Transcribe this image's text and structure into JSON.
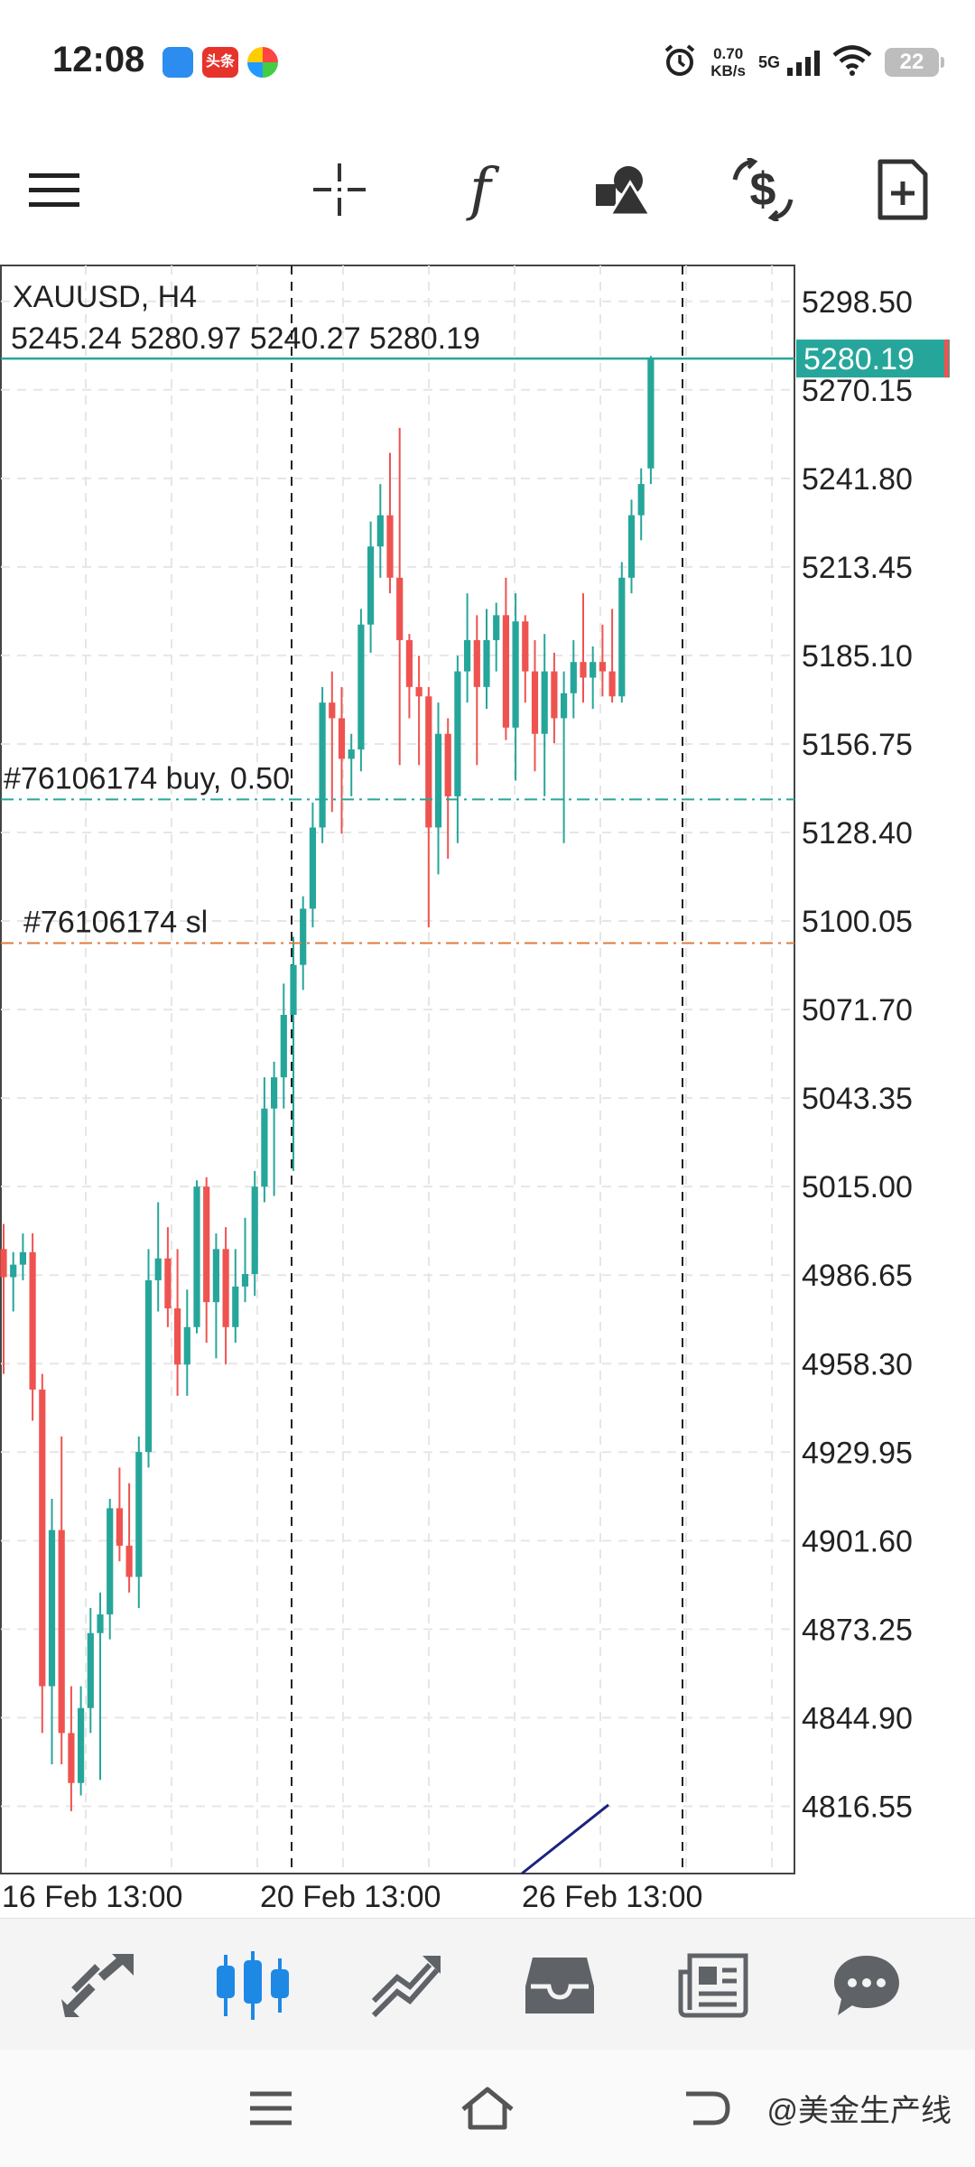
{
  "status_bar": {
    "time": "12:08",
    "network_speed_value": "0.70",
    "network_speed_unit": "KB/s",
    "network_type": "5G",
    "battery": "22",
    "app_badge_2": "头条",
    "icons": [
      "app-blue-icon",
      "toutiao-icon",
      "colorful-app-icon",
      "alarm-icon",
      "signal-icon",
      "wifi-icon",
      "battery-icon"
    ]
  },
  "toolbar": {
    "items": [
      "menu-icon",
      "crosshair-icon",
      "indicators-icon",
      "objects-icon",
      "trade-icon",
      "new-order-icon"
    ],
    "indicators_glyph": "f"
  },
  "chart": {
    "symbol": "XAUUSD, H4",
    "ohlc": "5245.24 5280.97 5240.27 5280.19",
    "current_price_label": "5280.19",
    "buy_line_label": "#76106174 buy, 0.50",
    "sl_line_label": "#76106174 sl",
    "colors": {
      "bull": "#26a69a",
      "bear": "#ef5350",
      "price_line": "#26a69a",
      "buy_line": "#26a69a",
      "sl_line": "#e07b39",
      "indicator": "#1a237e"
    }
  },
  "chart_data": {
    "type": "candlestick",
    "symbol": "XAUUSD",
    "timeframe": "H4",
    "ylim": [
      4795,
      5310
    ],
    "y_ticks": [
      "5298.50",
      "5270.15",
      "5241.80",
      "5213.45",
      "5185.10",
      "5156.75",
      "5128.40",
      "5100.05",
      "5071.70",
      "5043.35",
      "5015.00",
      "4986.65",
      "4958.30",
      "4929.95",
      "4901.60",
      "4873.25",
      "4844.90",
      "4816.55"
    ],
    "x_ticks": [
      "16 Feb 13:00",
      "20 Feb 13:00",
      "26 Feb 13:00"
    ],
    "grid": true,
    "candles": [
      [
        4995,
        5003,
        4955,
        4986
      ],
      [
        4986,
        4994,
        4975,
        4990
      ],
      [
        4990,
        5000,
        4985,
        4994
      ],
      [
        4994,
        5000,
        4940,
        4950
      ],
      [
        4950,
        4955,
        4840,
        4855
      ],
      [
        4855,
        4915,
        4830,
        4905
      ],
      [
        4905,
        4935,
        4830,
        4840
      ],
      [
        4840,
        4855,
        4815,
        4824
      ],
      [
        4824,
        4855,
        4820,
        4848
      ],
      [
        4848,
        4880,
        4840,
        4872
      ],
      [
        4872,
        4885,
        4825,
        4878
      ],
      [
        4878,
        4915,
        4870,
        4912
      ],
      [
        4912,
        4925,
        4895,
        4900
      ],
      [
        4900,
        4920,
        4885,
        4890
      ],
      [
        4890,
        4935,
        4880,
        4930
      ],
      [
        4930,
        4995,
        4925,
        4985
      ],
      [
        4985,
        5010,
        4975,
        4992
      ],
      [
        4992,
        5002,
        4970,
        4976
      ],
      [
        4976,
        4995,
        4948,
        4958
      ],
      [
        4958,
        4982,
        4948,
        4970
      ],
      [
        4970,
        5017,
        4968,
        5015
      ],
      [
        5015,
        5018,
        4965,
        4978
      ],
      [
        4978,
        5000,
        4960,
        4995
      ],
      [
        4995,
        5002,
        4958,
        4970
      ],
      [
        4970,
        4995,
        4965,
        4983
      ],
      [
        4983,
        5005,
        4978,
        4987
      ],
      [
        4987,
        5020,
        4980,
        5015
      ],
      [
        5015,
        5050,
        5010,
        5040
      ],
      [
        5040,
        5055,
        5012,
        5050
      ],
      [
        5050,
        5080,
        5040,
        5070
      ],
      [
        5070,
        5095,
        5020,
        5086
      ],
      [
        5086,
        5108,
        5078,
        5104
      ],
      [
        5104,
        5138,
        5098,
        5130
      ],
      [
        5130,
        5175,
        5125,
        5170
      ],
      [
        5170,
        5180,
        5135,
        5165
      ],
      [
        5165,
        5175,
        5128,
        5152
      ],
      [
        5152,
        5160,
        5140,
        5155
      ],
      [
        5155,
        5200,
        5148,
        5195
      ],
      [
        5195,
        5228,
        5186,
        5220
      ],
      [
        5220,
        5240,
        5210,
        5230
      ],
      [
        5230,
        5250,
        5205,
        5210
      ],
      [
        5210,
        5258,
        5150,
        5190
      ],
      [
        5190,
        5192,
        5165,
        5175
      ],
      [
        5175,
        5185,
        5150,
        5172
      ],
      [
        5172,
        5175,
        5098,
        5130
      ],
      [
        5130,
        5170,
        5115,
        5160
      ],
      [
        5160,
        5165,
        5120,
        5140
      ],
      [
        5140,
        5185,
        5125,
        5180
      ],
      [
        5180,
        5205,
        5170,
        5190
      ],
      [
        5190,
        5198,
        5150,
        5175
      ],
      [
        5175,
        5200,
        5168,
        5190
      ],
      [
        5190,
        5202,
        5180,
        5198
      ],
      [
        5198,
        5210,
        5158,
        5162
      ],
      [
        5162,
        5205,
        5145,
        5196
      ],
      [
        5196,
        5198,
        5170,
        5180
      ],
      [
        5180,
        5190,
        5148,
        5160
      ],
      [
        5160,
        5192,
        5140,
        5180
      ],
      [
        5180,
        5186,
        5157,
        5165
      ],
      [
        5165,
        5180,
        5125,
        5173
      ],
      [
        5173,
        5190,
        5165,
        5183
      ],
      [
        5183,
        5205,
        5170,
        5178
      ],
      [
        5178,
        5188,
        5168,
        5183
      ],
      [
        5183,
        5195,
        5172,
        5180
      ],
      [
        5180,
        5200,
        5170,
        5172
      ],
      [
        5172,
        5215,
        5170,
        5210
      ],
      [
        5210,
        5235,
        5205,
        5230
      ],
      [
        5230,
        5245,
        5222,
        5240
      ],
      [
        5245,
        5281,
        5240,
        5280
      ]
    ],
    "current_price": 5280.19,
    "horizontal_lines": [
      {
        "label": "#76106174 buy, 0.50",
        "price": 5139
      },
      {
        "label": "#76106174 sl",
        "price": 5093
      }
    ],
    "indicator_segment": {
      "from_price": 4795,
      "to_price": 4817
    }
  },
  "bottom_nav": {
    "items": [
      "quotes-icon",
      "chart-icon",
      "trade-icon",
      "history-icon",
      "news-icon",
      "messages-icon"
    ],
    "active": "chart-icon",
    "active_color": "#1e88e5"
  },
  "system_nav": {
    "items": [
      "recents-icon",
      "home-icon",
      "back-icon"
    ],
    "watermark": " @美金生产线"
  }
}
